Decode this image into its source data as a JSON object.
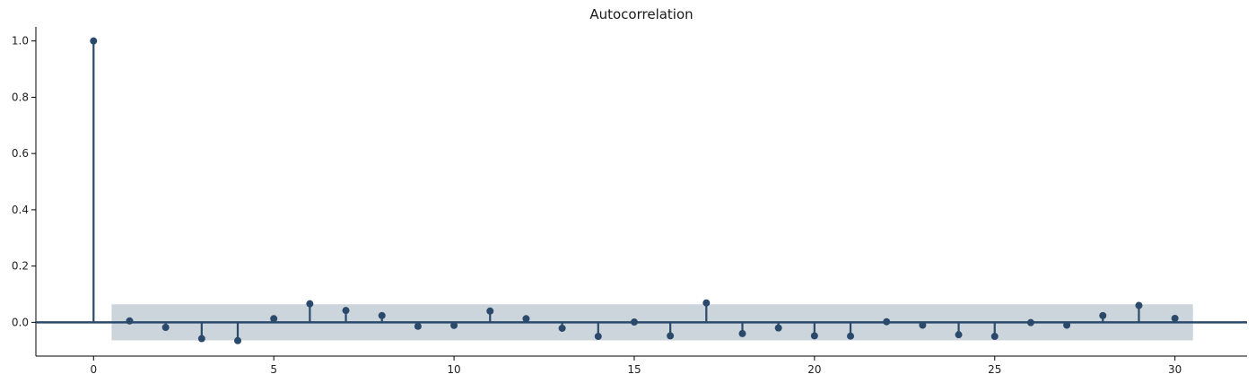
{
  "chart_data": {
    "type": "stem",
    "title": "Autocorrelation",
    "xlabel": "",
    "ylabel": "",
    "x": [
      0,
      1,
      2,
      3,
      4,
      5,
      6,
      7,
      8,
      9,
      10,
      11,
      12,
      13,
      14,
      15,
      16,
      17,
      18,
      19,
      20,
      21,
      22,
      23,
      24,
      25,
      26,
      27,
      28,
      29,
      30
    ],
    "values": [
      1.0,
      0.005,
      -0.018,
      -0.058,
      -0.065,
      0.013,
      0.066,
      0.042,
      0.024,
      -0.014,
      -0.011,
      0.04,
      0.013,
      -0.021,
      -0.05,
      0.001,
      -0.048,
      0.069,
      -0.04,
      -0.02,
      -0.048,
      -0.049,
      0.002,
      -0.01,
      -0.044,
      -0.05,
      -0.001,
      -0.01,
      0.024,
      0.06,
      0.014
    ],
    "confidence_band": {
      "x_range": [
        0.5,
        30.5
      ],
      "lower": -0.064,
      "upper": 0.064
    },
    "xticks": [
      0,
      5,
      10,
      15,
      20,
      25,
      30
    ],
    "yticks": [
      0.0,
      0.2,
      0.4,
      0.6,
      0.8,
      1.0
    ],
    "xlim": [
      -1.6,
      32.0
    ],
    "ylim": [
      -0.12,
      1.05
    ],
    "grid": false,
    "colors": {
      "stem": "#2b4a6b",
      "band": "#c3ccd6",
      "baseline": "#2b4a6b"
    }
  }
}
